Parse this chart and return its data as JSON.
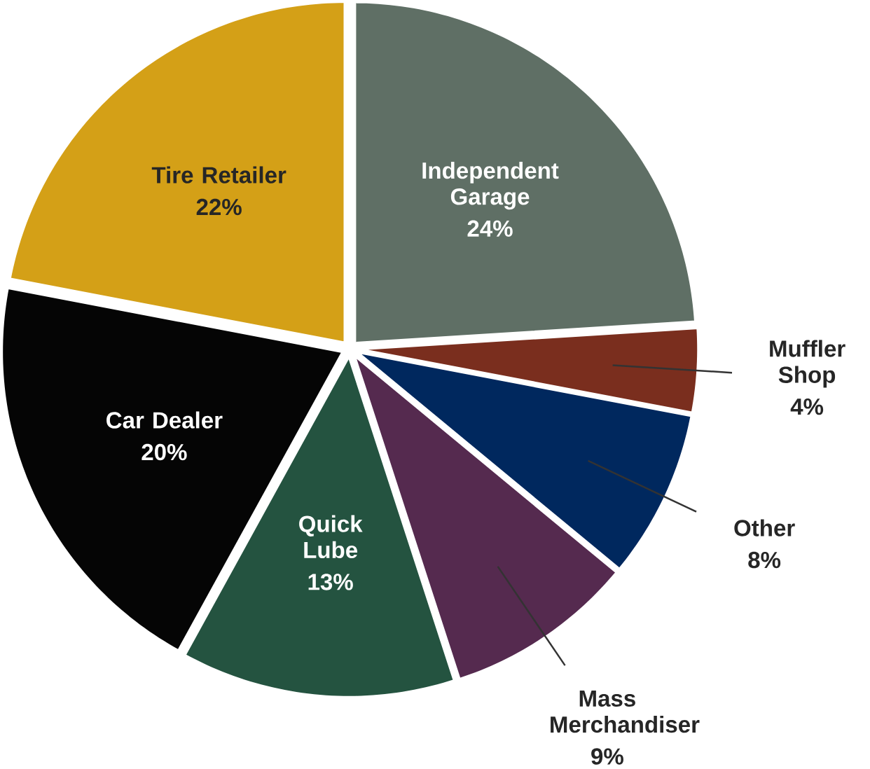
{
  "chart_data": {
    "type": "pie",
    "categories": [
      "Independent Garage",
      "Muffler Shop",
      "Other",
      "Mass Merchandiser",
      "Quick Lube",
      "Car Dealer",
      "Tire Retailer"
    ],
    "values": [
      24,
      4,
      8,
      9,
      13,
      20,
      22
    ],
    "value_labels": [
      "24%",
      "4%",
      "8%",
      "9%",
      "13%",
      "20%",
      "22%"
    ],
    "colors": [
      "#5f6f65",
      "#7a2e1e",
      "#00285e",
      "#552a4f",
      "#245340",
      "#050505",
      "#d4a017"
    ]
  }
}
